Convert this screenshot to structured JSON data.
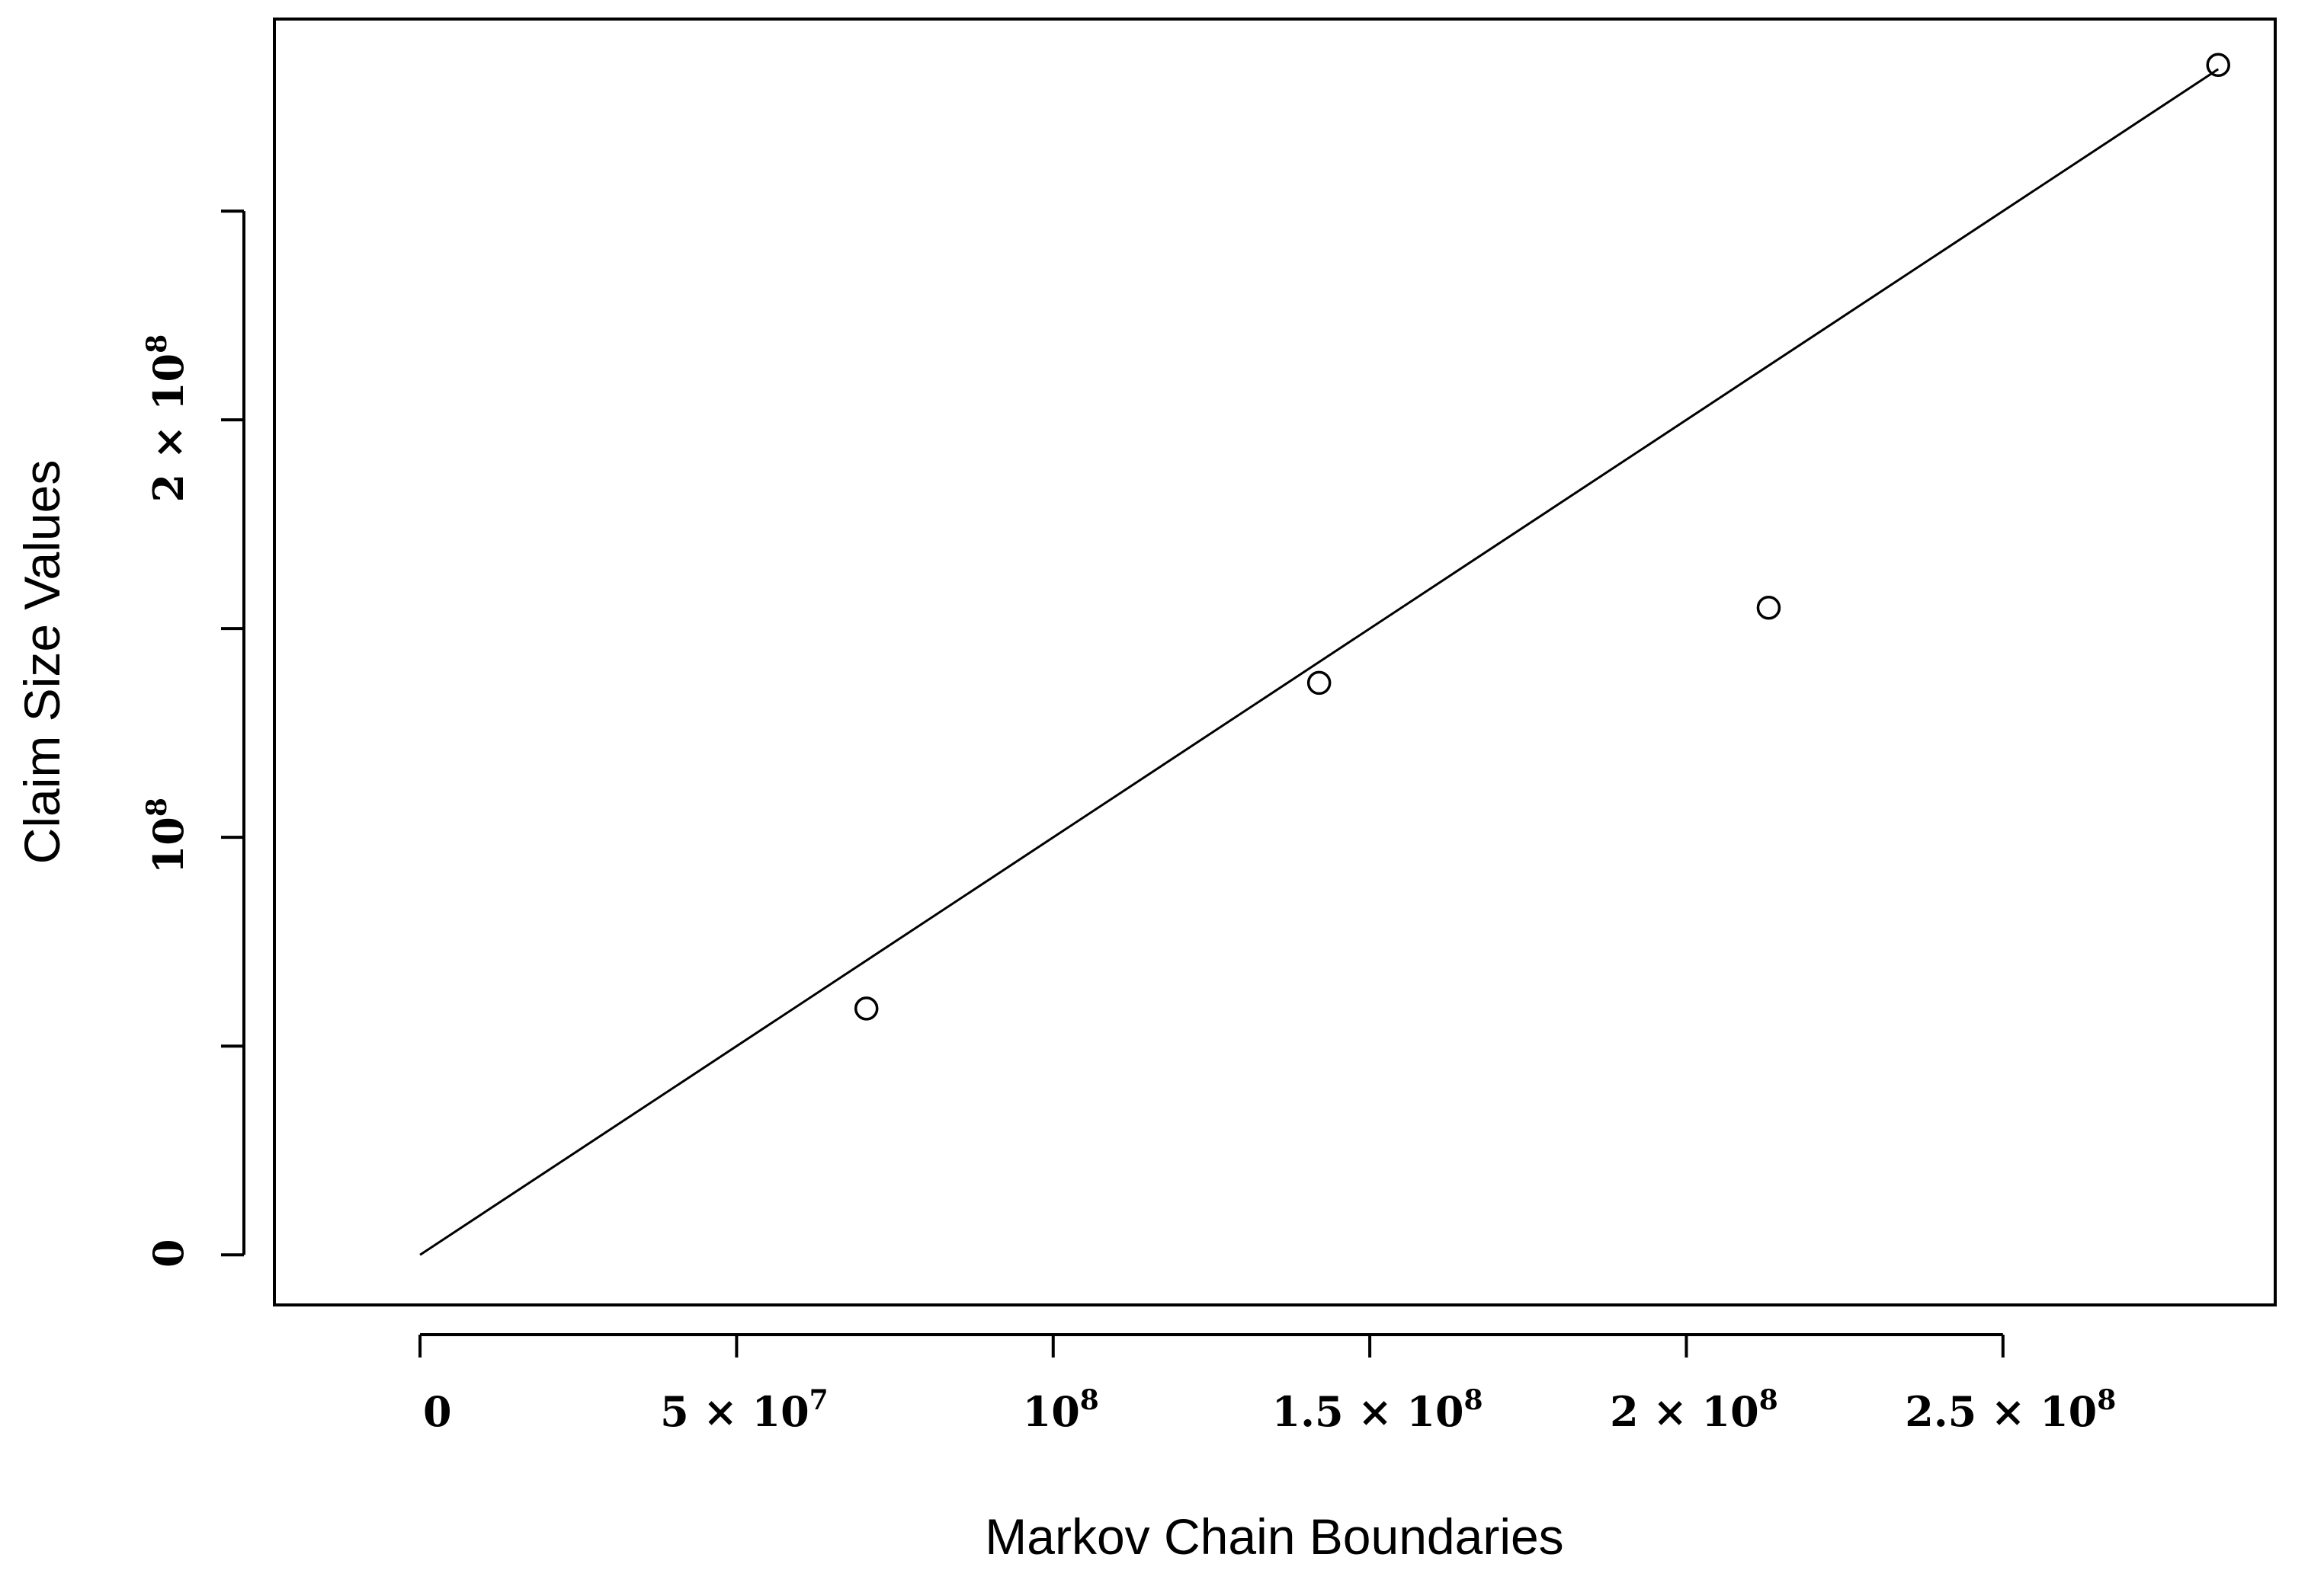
{
  "chart_data": {
    "type": "scatter",
    "title": "",
    "xlabel": "Markov Chain Boundaries",
    "ylabel": "Claim Size Values",
    "xlim": [
      -23000000,
      293000000
    ],
    "ylim": [
      -12000000,
      296000000
    ],
    "grid": false,
    "legend": "none",
    "x_ticks": [
      {
        "value": 0,
        "label": "0"
      },
      {
        "value": 50000000,
        "label": "5 × 10",
        "exp": "7"
      },
      {
        "value": 100000000,
        "label": "10",
        "exp": "8"
      },
      {
        "value": 150000000,
        "label": "1.5 × 10",
        "exp": "8"
      },
      {
        "value": 200000000,
        "label": "2 × 10",
        "exp": "8"
      },
      {
        "value": 250000000,
        "label": "2.5 × 10",
        "exp": "8"
      }
    ],
    "y_ticks": [
      {
        "value": 0,
        "label": "0"
      },
      {
        "value": 50000000,
        "label": ""
      },
      {
        "value": 100000000,
        "label": "10",
        "exp": "8"
      },
      {
        "value": 150000000,
        "label": ""
      },
      {
        "value": 200000000,
        "label": "2 × 10",
        "exp": "8"
      },
      {
        "value": 250000000,
        "label": ""
      }
    ],
    "series": [
      {
        "kind": "points",
        "marker": "open-circle",
        "x": [
          70500000,
          142000000,
          213000000,
          284000000
        ],
        "y": [
          59000000,
          137000000,
          155000000,
          285000000
        ]
      },
      {
        "kind": "line",
        "x": [
          0,
          284000000
        ],
        "y": [
          0,
          284000000
        ]
      }
    ],
    "colors": {
      "ink": "#000000",
      "background": "#ffffff"
    }
  }
}
